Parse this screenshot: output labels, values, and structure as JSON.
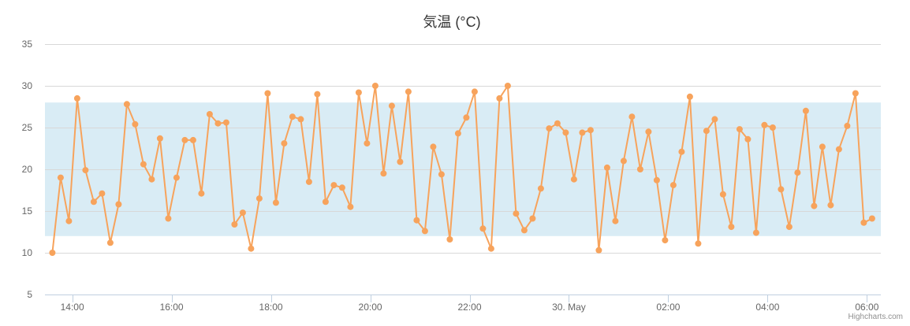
{
  "chart_data": {
    "type": "line",
    "title": "気温 (°C)",
    "xlabel": "",
    "ylabel": "",
    "ylim": [
      5,
      35
    ],
    "y_ticks": [
      5,
      10,
      15,
      20,
      25,
      30,
      35
    ],
    "x_tick_labels": [
      "14:00",
      "16:00",
      "18:00",
      "20:00",
      "22:00",
      "30. May",
      "02:00",
      "04:00",
      "06:00"
    ],
    "x_tick_hours": [
      14,
      16,
      18,
      20,
      22,
      24,
      26,
      28,
      30
    ],
    "x_range_hours": [
      13.45,
      30.28
    ],
    "plot_band": {
      "from": 12,
      "to": 28,
      "color": "#d9ecf5"
    },
    "grid": true,
    "legend": "none",
    "series": [
      {
        "color": "#f7a35c",
        "x_hours_start": 13.6,
        "x_hours_step": 0.1667,
        "values": [
          10.0,
          19.0,
          13.8,
          28.5,
          19.9,
          16.1,
          17.1,
          11.2,
          15.8,
          27.8,
          25.4,
          20.6,
          18.8,
          23.7,
          14.1,
          19.0,
          23.5,
          23.5,
          17.1,
          26.6,
          25.5,
          25.6,
          13.4,
          14.8,
          10.5,
          16.5,
          29.1,
          16.0,
          23.1,
          26.3,
          26.0,
          18.5,
          29.0,
          16.1,
          18.1,
          17.8,
          15.5,
          29.2,
          23.1,
          30.0,
          19.5,
          27.6,
          20.9,
          29.3,
          13.9,
          12.6,
          22.7,
          19.4,
          11.6,
          24.3,
          26.2,
          29.3,
          12.9,
          10.5,
          28.5,
          30.0,
          14.7,
          12.7,
          14.1,
          17.7,
          24.9,
          25.5,
          24.4,
          18.8,
          24.4,
          24.7,
          10.3,
          20.2,
          13.8,
          21.0,
          26.3,
          20.0,
          24.5,
          18.7,
          11.5,
          18.1,
          22.1,
          28.7,
          11.1,
          24.6,
          26.0,
          17.0,
          13.1,
          24.8,
          23.6,
          12.4,
          25.3,
          25.0,
          17.6,
          13.1,
          19.6,
          27.0,
          15.6,
          22.7,
          15.7,
          22.4,
          25.2,
          29.1,
          13.6,
          14.1
        ]
      }
    ]
  },
  "credits": "Highcharts.com"
}
